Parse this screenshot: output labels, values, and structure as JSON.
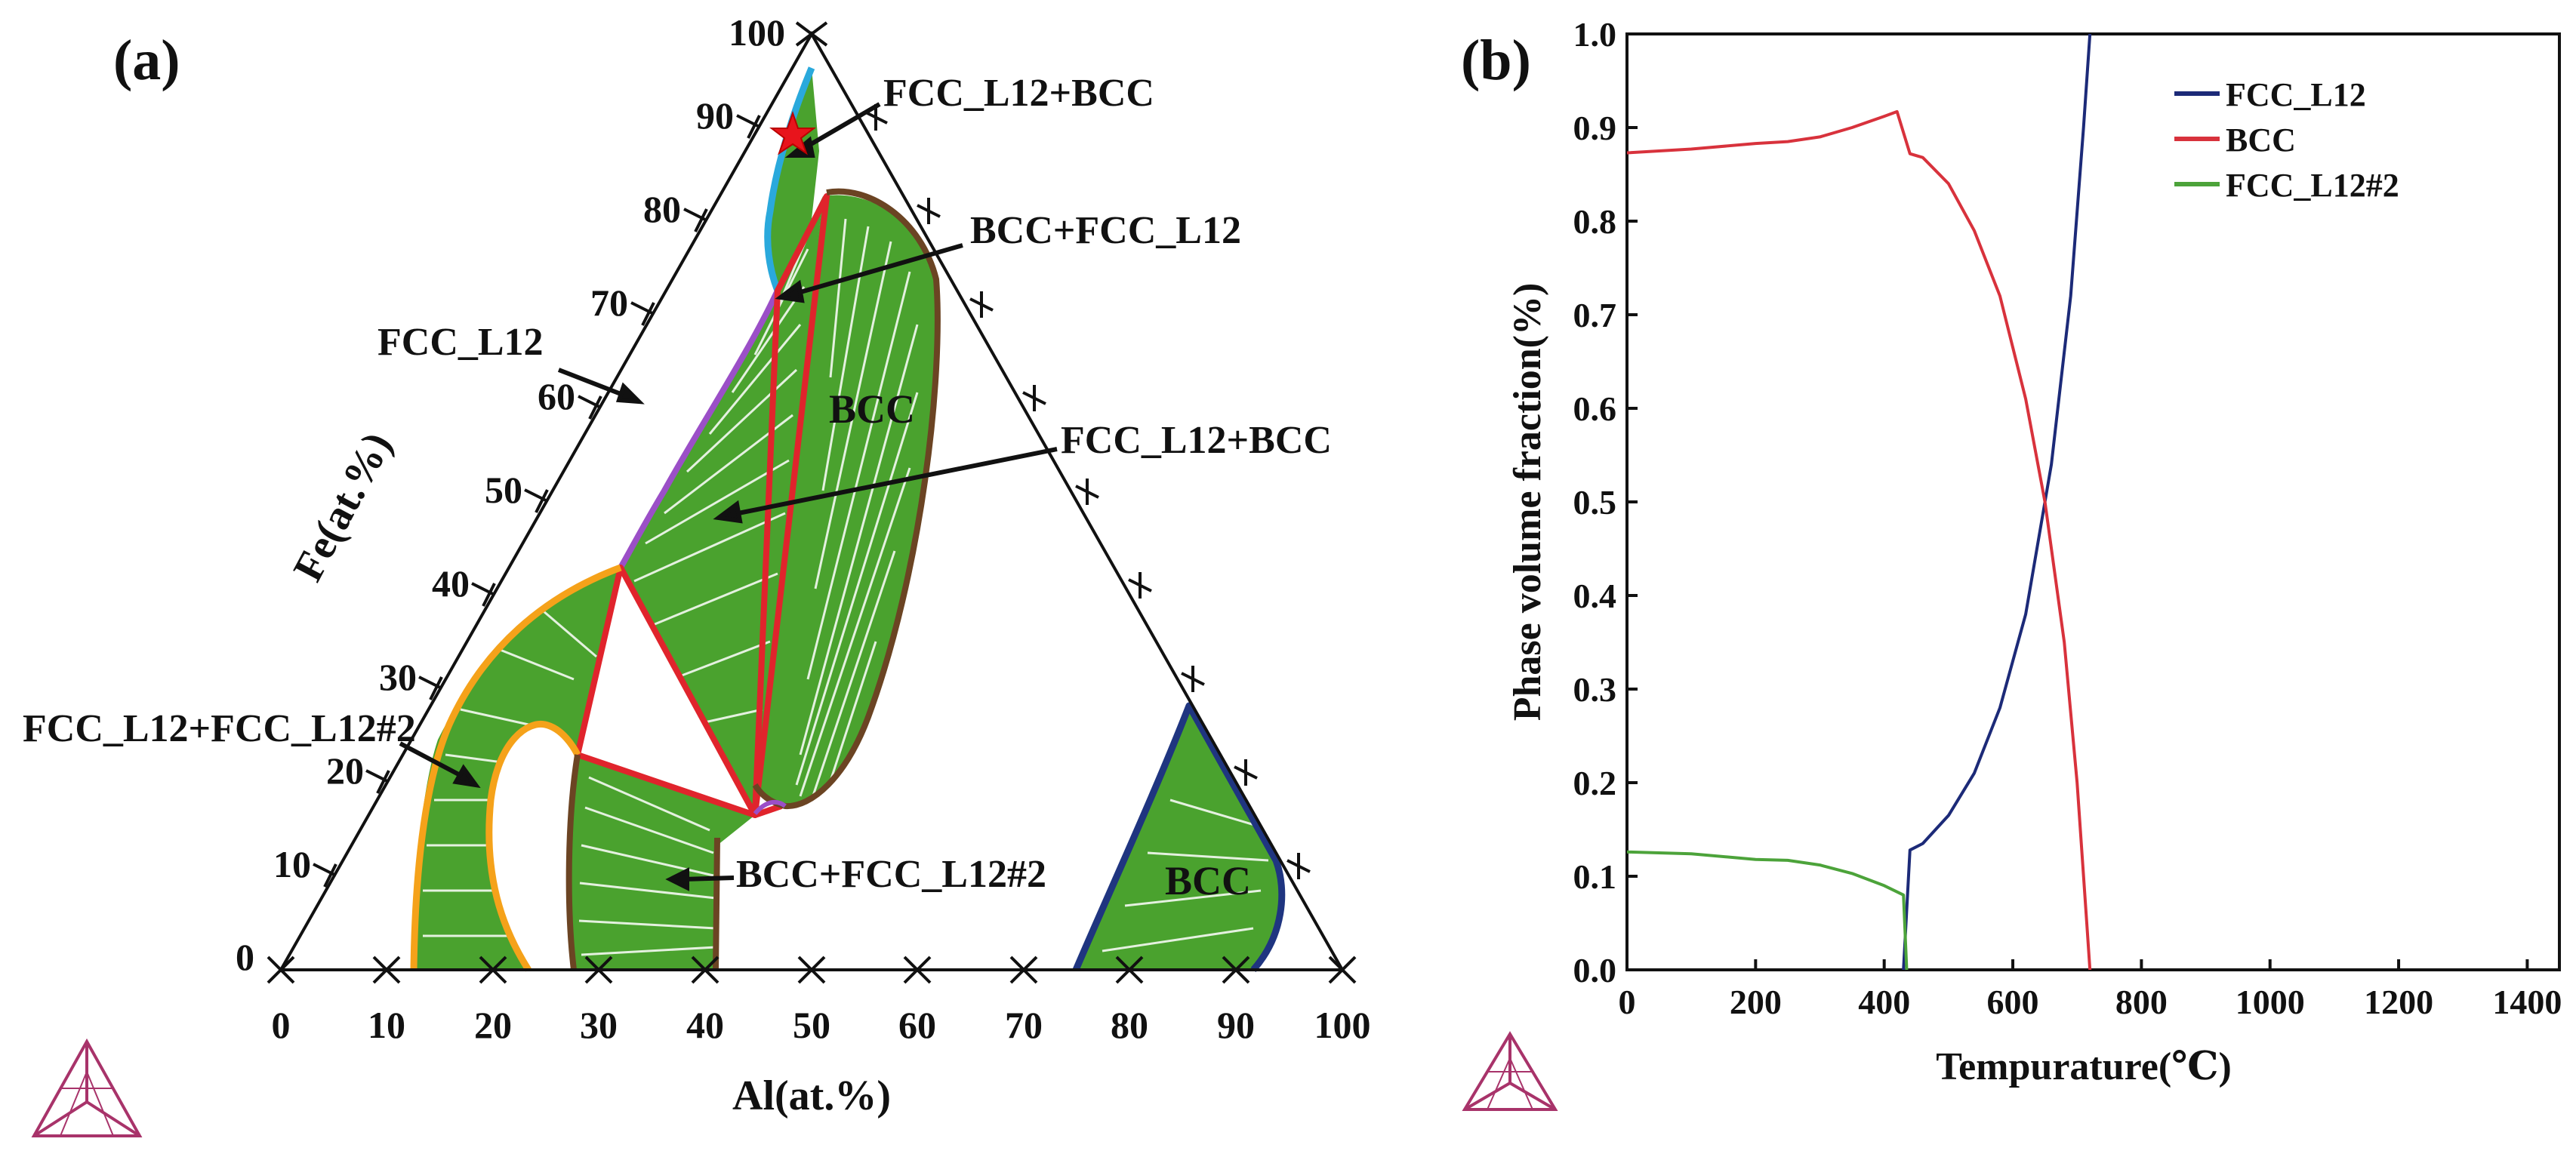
{
  "panel_a": {
    "label": "(a)",
    "axis_label_bottom": "Al(at.%)",
    "axis_label_left": "Fe(at.%)",
    "bottom_ticks": [
      "0",
      "10",
      "20",
      "30",
      "40",
      "50",
      "60",
      "70",
      "80",
      "90",
      "100"
    ],
    "left_ticks": [
      "0",
      "10",
      "20",
      "30",
      "40",
      "50",
      "60",
      "70",
      "80",
      "90",
      "100"
    ],
    "region_labels": {
      "bcc_center": "BCC",
      "bcc_right": "BCC"
    },
    "annotations": {
      "top": "FCC_L12+BCC",
      "bcc_fcc": "BCC+FCC_L12",
      "fcc_l12": "FCC_L12",
      "fcc_bcc_mid": "FCC_L12+BCC",
      "fcc_fcc2": "FCC_L12+FCC_L12#2",
      "bcc_fcc2": "BCC+FCC_L12#2"
    },
    "marker": "star"
  },
  "panel_b": {
    "label": "(b)"
  },
  "colors": {
    "green": "#4aa22e",
    "red": "#e0242c",
    "orange": "#f5a21a",
    "brown": "#6b4423",
    "blue": "#1f3580",
    "purple": "#9b4fc7",
    "cyan": "#2aa9dc",
    "fcc_line": "#1c2a78",
    "bcc_line": "#d8323c",
    "fcc2_line": "#4ca33a"
  },
  "chart_data": {
    "type": "line",
    "title": "",
    "xlabel": "Tempurature(℃)",
    "ylabel": "Phase volume fraction(%)",
    "xlim": [
      0,
      1450
    ],
    "ylim": [
      0,
      1.0
    ],
    "xticks": [
      0,
      200,
      400,
      600,
      800,
      1000,
      1200,
      1400
    ],
    "yticks": [
      0.0,
      0.1,
      0.2,
      0.3,
      0.4,
      0.5,
      0.6,
      0.7,
      0.8,
      0.9,
      1.0
    ],
    "xtick_labels": [
      "0",
      "200",
      "400",
      "600",
      "800",
      "1000",
      "1200",
      "1400"
    ],
    "ytick_labels": [
      "0.0",
      "0.1",
      "0.2",
      "0.3",
      "0.4",
      "0.5",
      "0.6",
      "0.7",
      "0.8",
      "0.9",
      "1.0"
    ],
    "legend_position": "top-right",
    "series": [
      {
        "name": "FCC_L12",
        "color": "#1c2a78",
        "x": [
          430,
          440,
          460,
          500,
          540,
          580,
          620,
          660,
          690,
          710,
          720
        ],
        "y": [
          0.0,
          0.128,
          0.135,
          0.165,
          0.21,
          0.28,
          0.38,
          0.54,
          0.72,
          0.9,
          1.0
        ]
      },
      {
        "name": "BCC",
        "color": "#d8323c",
        "x": [
          0,
          100,
          200,
          250,
          300,
          350,
          400,
          420,
          440,
          460,
          500,
          540,
          580,
          620,
          650,
          680,
          700,
          715,
          720
        ],
        "y": [
          0.873,
          0.877,
          0.883,
          0.885,
          0.89,
          0.9,
          0.912,
          0.917,
          0.872,
          0.868,
          0.84,
          0.79,
          0.72,
          0.61,
          0.5,
          0.35,
          0.2,
          0.05,
          0.0
        ]
      },
      {
        "name": "FCC_L12#2",
        "color": "#4ca33a",
        "x": [
          0,
          100,
          200,
          250,
          300,
          350,
          400,
          430,
          435
        ],
        "y": [
          0.126,
          0.124,
          0.118,
          0.117,
          0.112,
          0.103,
          0.09,
          0.08,
          0.0
        ]
      }
    ]
  }
}
